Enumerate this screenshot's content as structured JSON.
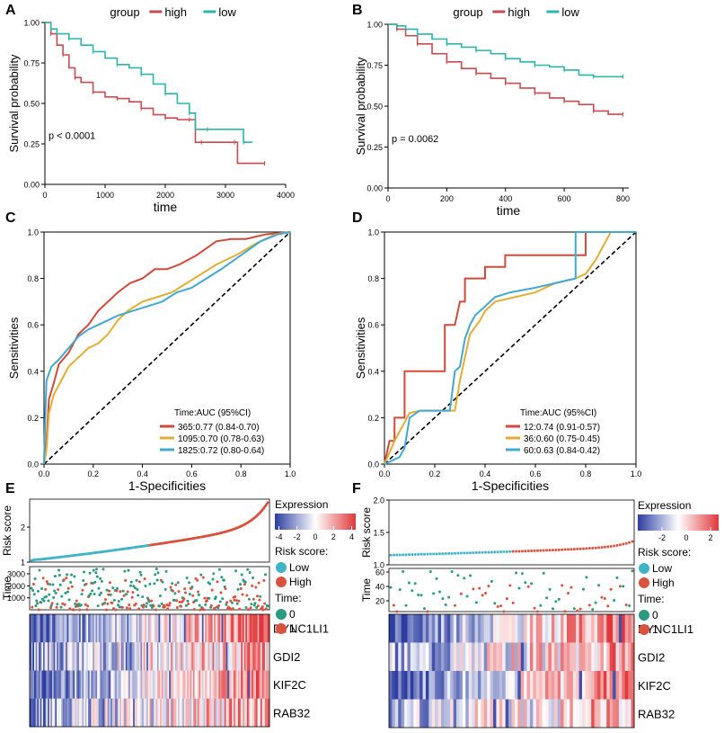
{
  "colors": {
    "high": "#c94a4f",
    "low": "#2bb5ae",
    "auc1": "#d14a39",
    "auc2": "#e3ad33",
    "auc3": "#41a8d2",
    "risk_low": "#41b3c6",
    "risk_high": "#d9523e",
    "time0": "#2a9a80",
    "time1": "#d9523e",
    "heat_low": "#2d3ea0",
    "heat_mid": "#ffffff",
    "heat_high": "#e0383b"
  },
  "chart_data": [
    {
      "id": "A",
      "type": "line",
      "panel_label": "A",
      "legend_title": "group",
      "legend": [
        "high",
        "low"
      ],
      "xlabel": "time",
      "ylabel": "Survival probability",
      "xlim": [
        0,
        4000
      ],
      "ylim": [
        0,
        1
      ],
      "xticks": [
        "0",
        "1000",
        "2000",
        "3000",
        "4000"
      ],
      "yticks": [
        "0.00",
        "0.25",
        "0.50",
        "0.75",
        "1.00"
      ],
      "pvalue": "p < 0.0001",
      "series": [
        {
          "name": "high",
          "x": [
            0,
            100,
            200,
            300,
            400,
            500,
            600,
            800,
            1000,
            1200,
            1400,
            1600,
            1800,
            2000,
            2200,
            2400,
            2500,
            2600,
            2900,
            3150,
            3200,
            3650
          ],
          "y": [
            1.0,
            0.93,
            0.86,
            0.8,
            0.72,
            0.66,
            0.63,
            0.57,
            0.54,
            0.53,
            0.51,
            0.47,
            0.43,
            0.41,
            0.4,
            0.4,
            0.26,
            0.26,
            0.26,
            0.26,
            0.13,
            0.13
          ]
        },
        {
          "name": "low",
          "x": [
            0,
            100,
            200,
            400,
            600,
            800,
            1000,
            1200,
            1400,
            1600,
            1800,
            2000,
            2200,
            2400,
            2500,
            2700,
            3000,
            3300,
            3450
          ],
          "y": [
            1.0,
            0.96,
            0.93,
            0.9,
            0.86,
            0.82,
            0.78,
            0.74,
            0.72,
            0.68,
            0.62,
            0.56,
            0.5,
            0.44,
            0.34,
            0.34,
            0.34,
            0.26,
            0.26
          ]
        }
      ]
    },
    {
      "id": "B",
      "type": "line",
      "panel_label": "B",
      "legend_title": "group",
      "legend": [
        "high",
        "low"
      ],
      "xlabel": "time",
      "ylabel": "Survival probability",
      "xlim": [
        0,
        820
      ],
      "ylim": [
        0,
        1
      ],
      "xticks": [
        "0",
        "200",
        "400",
        "600",
        "800"
      ],
      "yticks": [
        "0.00",
        "0.25",
        "0.50",
        "0.75",
        "1.00"
      ],
      "pvalue": "p = 0.0062",
      "series": [
        {
          "name": "high",
          "x": [
            0,
            30,
            60,
            100,
            150,
            200,
            250,
            300,
            350,
            400,
            450,
            500,
            550,
            600,
            650,
            700,
            750,
            800
          ],
          "y": [
            1.0,
            0.97,
            0.93,
            0.88,
            0.82,
            0.77,
            0.73,
            0.7,
            0.67,
            0.64,
            0.61,
            0.58,
            0.55,
            0.53,
            0.51,
            0.47,
            0.45,
            0.45
          ]
        },
        {
          "name": "low",
          "x": [
            0,
            30,
            60,
            100,
            150,
            200,
            250,
            300,
            350,
            400,
            450,
            500,
            550,
            600,
            650,
            700,
            750,
            800
          ],
          "y": [
            1.0,
            0.99,
            0.97,
            0.94,
            0.91,
            0.88,
            0.86,
            0.84,
            0.82,
            0.79,
            0.77,
            0.75,
            0.74,
            0.72,
            0.69,
            0.68,
            0.68,
            0.68
          ]
        }
      ]
    },
    {
      "id": "C",
      "type": "line",
      "panel_label": "C",
      "xlabel": "1-Specificities",
      "ylabel": "Sensitivities",
      "xlim": [
        0,
        1
      ],
      "ylim": [
        0,
        1
      ],
      "xticks": [
        "0.0",
        "0.2",
        "0.4",
        "0.6",
        "0.8",
        "1.0"
      ],
      "yticks": [
        "0.0",
        "0.2",
        "0.4",
        "0.6",
        "0.8",
        "1.0"
      ],
      "legend_title": "Time:AUC (95%CI)",
      "legend": [
        "365:0.77 (0.84-0.70)",
        "1095:0.70 (0.78-0.63)",
        "1825:0.72 (0.80-0.64)"
      ],
      "series": [
        {
          "name": "365:0.77 (0.84-0.70)",
          "x": [
            0,
            0.01,
            0.02,
            0.04,
            0.06,
            0.1,
            0.14,
            0.18,
            0.22,
            0.26,
            0.3,
            0.35,
            0.4,
            0.45,
            0.5,
            0.55,
            0.62,
            0.7,
            0.76,
            0.82,
            0.9,
            1.0
          ],
          "y": [
            0,
            0.1,
            0.28,
            0.35,
            0.43,
            0.48,
            0.56,
            0.6,
            0.66,
            0.7,
            0.74,
            0.78,
            0.8,
            0.84,
            0.84,
            0.86,
            0.9,
            0.96,
            0.97,
            0.97,
            0.99,
            1.0
          ]
        },
        {
          "name": "1095:0.70 (0.78-0.63)",
          "x": [
            0,
            0.01,
            0.02,
            0.04,
            0.07,
            0.1,
            0.14,
            0.18,
            0.22,
            0.26,
            0.3,
            0.34,
            0.4,
            0.46,
            0.52,
            0.58,
            0.64,
            0.7,
            0.78,
            0.86,
            0.94,
            1.0
          ],
          "y": [
            0,
            0.06,
            0.22,
            0.3,
            0.36,
            0.42,
            0.46,
            0.5,
            0.52,
            0.56,
            0.62,
            0.66,
            0.7,
            0.72,
            0.74,
            0.78,
            0.82,
            0.86,
            0.9,
            0.95,
            0.99,
            1.0
          ]
        },
        {
          "name": "1825:0.72 (0.80-0.64)",
          "x": [
            0,
            0.005,
            0.01,
            0.03,
            0.06,
            0.1,
            0.14,
            0.18,
            0.22,
            0.26,
            0.3,
            0.36,
            0.42,
            0.48,
            0.54,
            0.6,
            0.66,
            0.72,
            0.8,
            0.88,
            0.95,
            1.0
          ],
          "y": [
            0,
            0.2,
            0.36,
            0.42,
            0.45,
            0.5,
            0.55,
            0.58,
            0.6,
            0.62,
            0.64,
            0.66,
            0.68,
            0.7,
            0.74,
            0.76,
            0.8,
            0.84,
            0.9,
            0.96,
            0.99,
            1.0
          ]
        }
      ]
    },
    {
      "id": "D",
      "type": "line",
      "panel_label": "D",
      "xlabel": "1-Specificities",
      "ylabel": "Sensitivities",
      "xlim": [
        0,
        1
      ],
      "ylim": [
        0,
        1
      ],
      "xticks": [
        "0.0",
        "0.2",
        "0.4",
        "0.6",
        "0.8",
        "1.0"
      ],
      "yticks": [
        "0.0",
        "0.2",
        "0.4",
        "0.6",
        "0.8",
        "1.0"
      ],
      "legend_title": "Time:AUC (95%CI)",
      "legend": [
        "12:0.74 (0.91-0.57)",
        "36:0.60 (0.75-0.45)",
        "60:0.63 (0.84-0.42)"
      ],
      "series": [
        {
          "name": "12:0.74 (0.91-0.57)",
          "x": [
            0,
            0.02,
            0.04,
            0.04,
            0.08,
            0.08,
            0.14,
            0.14,
            0.16,
            0.24,
            0.24,
            0.28,
            0.3,
            0.32,
            0.32,
            0.4,
            0.4,
            0.48,
            0.48,
            0.8,
            0.8,
            1.0
          ],
          "y": [
            0,
            0.1,
            0.1,
            0.2,
            0.2,
            0.4,
            0.4,
            0.4,
            0.4,
            0.4,
            0.6,
            0.6,
            0.7,
            0.7,
            0.8,
            0.8,
            0.85,
            0.85,
            0.9,
            0.9,
            1.0,
            1.0
          ]
        },
        {
          "name": "36:0.60 (0.75-0.45)",
          "x": [
            0,
            0.02,
            0.04,
            0.06,
            0.08,
            0.1,
            0.14,
            0.2,
            0.28,
            0.3,
            0.32,
            0.34,
            0.38,
            0.4,
            0.44,
            0.52,
            0.6,
            0.68,
            0.76,
            0.8,
            0.84,
            0.9,
            1.0
          ],
          "y": [
            0,
            0.05,
            0.1,
            0.14,
            0.18,
            0.22,
            0.23,
            0.23,
            0.23,
            0.36,
            0.46,
            0.56,
            0.62,
            0.66,
            0.7,
            0.72,
            0.74,
            0.78,
            0.8,
            0.82,
            0.88,
            1.0,
            1.0
          ]
        },
        {
          "name": "60:0.63 (0.84-0.42)",
          "x": [
            0,
            0.06,
            0.08,
            0.1,
            0.14,
            0.2,
            0.26,
            0.28,
            0.3,
            0.32,
            0.34,
            0.36,
            0.4,
            0.44,
            0.5,
            0.6,
            0.68,
            0.76,
            0.76,
            0.8,
            1.0
          ],
          "y": [
            0,
            0.03,
            0.07,
            0.2,
            0.23,
            0.23,
            0.23,
            0.4,
            0.42,
            0.54,
            0.6,
            0.64,
            0.68,
            0.72,
            0.74,
            0.76,
            0.78,
            0.8,
            1.0,
            1.0,
            1.0
          ]
        }
      ]
    },
    {
      "id": "E",
      "type": "heatmap",
      "panel_label": "E",
      "risk_label": "Risk score",
      "time_label": "Time",
      "risk_ylim": [
        1,
        2.8
      ],
      "risk_yticks": [
        "1",
        "2"
      ],
      "risk_ytick_values": [
        1,
        2
      ],
      "risk_range": [
        1.05,
        2.7
      ],
      "time_ylim": [
        0,
        3600
      ],
      "time_yticks": [
        "1000",
        "2000",
        "3000"
      ],
      "time_ytick_values": [
        1000,
        2000,
        3000
      ],
      "n_points": 320,
      "split_fraction": 0.5,
      "expression_title": "Expression",
      "expression_ticks": [
        "-4",
        "-2",
        "0",
        "2",
        "4"
      ],
      "risk_legend_title": "Risk score:",
      "risk_legend": [
        "Low",
        "High"
      ],
      "time_legend_title": "Time:",
      "time_legend": [
        "0",
        "1"
      ],
      "genes": [
        "DYNC1LI1",
        "GDI2",
        "KIF2C",
        "RAB32"
      ]
    },
    {
      "id": "F",
      "type": "heatmap",
      "panel_label": "F",
      "risk_label": "Risk score",
      "time_label": "Time",
      "risk_ylim": [
        1.0,
        2.0
      ],
      "risk_yticks": [
        "1.0",
        "1.5",
        "2.0"
      ],
      "risk_ytick_values": [
        1.0,
        1.5,
        2.0
      ],
      "risk_range": [
        1.15,
        1.36
      ],
      "time_ylim": [
        5,
        65
      ],
      "time_yticks": [
        "20",
        "40",
        "60"
      ],
      "time_ytick_values": [
        20,
        40,
        60
      ],
      "n_points": 80,
      "split_fraction": 0.5,
      "expression_title": "Expression",
      "expression_ticks": [
        "-2",
        "0",
        "2"
      ],
      "risk_legend_title": "Risk score:",
      "risk_legend": [
        "Low",
        "High"
      ],
      "time_legend_title": "Time:",
      "time_legend": [
        "0",
        "1"
      ],
      "genes": [
        "DYNC1LI1",
        "GDI2",
        "KIF2C",
        "RAB32"
      ]
    }
  ]
}
